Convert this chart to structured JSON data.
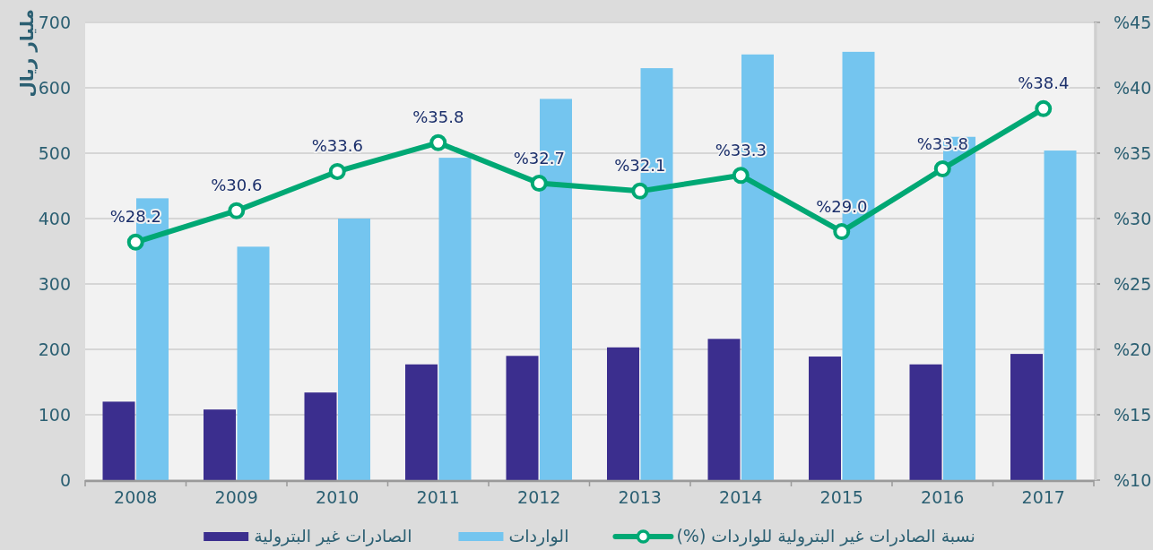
{
  "chart_data": {
    "type": "bar",
    "ylabel": "مليار ريال",
    "categories": [
      "2008",
      "2009",
      "2010",
      "2011",
      "2012",
      "2013",
      "2014",
      "2015",
      "2016",
      "2017"
    ],
    "series": [
      {
        "name": "الصادرات غير البترولية",
        "color": "#3b2e8e",
        "values": [
          120,
          108,
          134,
          177,
          190,
          203,
          216,
          189,
          177,
          193
        ]
      },
      {
        "name": "الواردات",
        "color": "#74c5ef",
        "values": [
          431,
          357,
          400,
          493,
          583,
          630,
          651,
          655,
          525,
          504
        ]
      },
      {
        "name": "نسبة الصادرات غير البترولية للواردات (%)",
        "type": "line",
        "axis": "y2",
        "color": "#00a874",
        "marker": "circle",
        "line_style": "solid",
        "values": [
          28.2,
          30.6,
          33.6,
          35.8,
          32.7,
          32.1,
          33.3,
          29.0,
          33.8,
          38.4
        ],
        "value_labels": [
          "%28.2",
          "%30.6",
          "%33.6",
          "%35.8",
          "%32.7",
          "%32.1",
          "%33.3",
          "%29.0",
          "%33.8",
          "%38.4"
        ]
      }
    ],
    "ylim": [
      0,
      700
    ],
    "yticks": [
      0,
      100,
      200,
      300,
      400,
      500,
      600,
      700
    ],
    "y2lim": [
      10,
      45
    ],
    "y2ticks": [
      {
        "value": 10,
        "label": "%10"
      },
      {
        "value": 15,
        "label": "%15"
      },
      {
        "value": 20,
        "label": "%20"
      },
      {
        "value": 25,
        "label": "%25"
      },
      {
        "value": 30,
        "label": "%30"
      },
      {
        "value": 35,
        "label": "%35"
      },
      {
        "value": 40,
        "label": "%40"
      },
      {
        "value": 45,
        "label": "%45"
      }
    ],
    "grid": "y",
    "legend": "bottom"
  }
}
